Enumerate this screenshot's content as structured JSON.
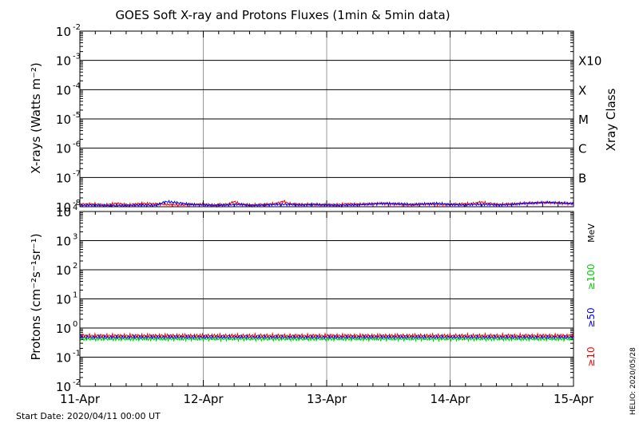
{
  "title": "GOES Soft X-ray and Protons Fluxes   (1min & 5min data)",
  "start_date": "Start Date: 2020/04/11 00:00 UT",
  "credit": "HELIO: 2020/05/28",
  "colors": {
    "xray_long": "#ff0000",
    "xray_short": "#0000ff",
    "p10": "#ff0000",
    "p50": "#0000ff",
    "p100": "#00cc00",
    "grid": "#000000",
    "day_grid": "#999999"
  },
  "chart_data": [
    {
      "type": "line",
      "panel": "xray",
      "ylabel": "X-rays (Watts m⁻²)",
      "y_scale": "log",
      "ylim": [
        1e-08,
        0.01
      ],
      "y_ticks": [
        {
          "base": "10",
          "exp": "-8",
          "value": 1e-08
        },
        {
          "base": "10",
          "exp": "-7",
          "value": 1e-07
        },
        {
          "base": "10",
          "exp": "-6",
          "value": 1e-06
        },
        {
          "base": "10",
          "exp": "-5",
          "value": 1e-05
        },
        {
          "base": "10",
          "exp": "-4",
          "value": 0.0001
        },
        {
          "base": "10",
          "exp": "-3",
          "value": 0.001
        },
        {
          "base": "10",
          "exp": "-2",
          "value": 0.01
        }
      ],
      "right_label": "Xray Class",
      "class_labels": [
        {
          "label": "B",
          "value": 1e-07
        },
        {
          "label": "C",
          "value": 1e-06
        },
        {
          "label": "M",
          "value": 1e-05
        },
        {
          "label": "X",
          "value": 0.0001
        },
        {
          "label": "X10",
          "value": 0.001
        }
      ],
      "xlim": [
        0,
        4
      ],
      "x_tick_labels": [
        "11-Apr",
        "12-Apr",
        "13-Apr",
        "14-Apr",
        "15-Apr"
      ],
      "series": [
        {
          "key": "long",
          "color": "#ff0000",
          "x": [
            0,
            0.1,
            0.2,
            0.3,
            0.4,
            0.5,
            0.6,
            0.7,
            0.8,
            0.9,
            1.0,
            1.1,
            1.2,
            1.25,
            1.3,
            1.4,
            1.5,
            1.6,
            1.65,
            1.7,
            1.8,
            1.9,
            2.0,
            2.1,
            2.2,
            2.3,
            2.4,
            2.5,
            2.6,
            2.7,
            2.8,
            2.9,
            3.0,
            3.1,
            3.2,
            3.25,
            3.3,
            3.4,
            3.5,
            3.6,
            3.7,
            3.8,
            3.9,
            4.0
          ],
          "values": [
            1.2e-08,
            1.25e-08,
            1.15e-08,
            1.3e-08,
            1.15e-08,
            1.3e-08,
            1.25e-08,
            1.2e-08,
            1.15e-08,
            1.2e-08,
            1.2e-08,
            1.15e-08,
            1.2e-08,
            1.5e-08,
            1.2e-08,
            1.15e-08,
            1.2e-08,
            1.3e-08,
            1.55e-08,
            1.25e-08,
            1.2e-08,
            1.2e-08,
            1.15e-08,
            1.2e-08,
            1.25e-08,
            1.2e-08,
            1.3e-08,
            1.25e-08,
            1.2e-08,
            1.15e-08,
            1.25e-08,
            1.2e-08,
            1.2e-08,
            1.25e-08,
            1.3e-08,
            1.45e-08,
            1.3e-08,
            1.2e-08,
            1.25e-08,
            1.3e-08,
            1.35e-08,
            1.4e-08,
            1.3e-08,
            1.25e-08
          ]
        },
        {
          "key": "short",
          "color": "#0000ff",
          "x": [
            0,
            0.1,
            0.2,
            0.3,
            0.4,
            0.5,
            0.6,
            0.7,
            0.8,
            0.9,
            1.0,
            1.1,
            1.2,
            1.3,
            1.4,
            1.5,
            1.6,
            1.7,
            1.8,
            1.9,
            2.0,
            2.1,
            2.2,
            2.3,
            2.4,
            2.5,
            2.6,
            2.7,
            2.8,
            2.9,
            3.0,
            3.1,
            3.2,
            3.3,
            3.4,
            3.5,
            3.6,
            3.7,
            3.8,
            3.9,
            4.0
          ],
          "values": [
            1.1e-08,
            1.15e-08,
            1.1e-08,
            1.1e-08,
            1.1e-08,
            1.15e-08,
            1.1e-08,
            1.5e-08,
            1.35e-08,
            1.2e-08,
            1.15e-08,
            1.1e-08,
            1.15e-08,
            1.2e-08,
            1.1e-08,
            1.15e-08,
            1.2e-08,
            1.2e-08,
            1.15e-08,
            1.2e-08,
            1.15e-08,
            1.1e-08,
            1.15e-08,
            1.2e-08,
            1.25e-08,
            1.3e-08,
            1.25e-08,
            1.2e-08,
            1.25e-08,
            1.3e-08,
            1.2e-08,
            1.15e-08,
            1.2e-08,
            1.2e-08,
            1.15e-08,
            1.2e-08,
            1.3e-08,
            1.35e-08,
            1.4e-08,
            1.35e-08,
            1.3e-08
          ]
        }
      ]
    },
    {
      "type": "line",
      "panel": "protons",
      "ylabel": "Protons (cm⁻²s⁻¹sr⁻¹)",
      "y_scale": "log",
      "ylim": [
        0.01,
        10000
      ],
      "y_ticks": [
        {
          "base": "10",
          "exp": "-2",
          "value": 0.01
        },
        {
          "base": "10",
          "exp": "-1",
          "value": 0.1
        },
        {
          "base": "10",
          "exp": "0",
          "value": 1
        },
        {
          "base": "10",
          "exp": "1",
          "value": 10
        },
        {
          "base": "10",
          "exp": "2",
          "value": 100
        },
        {
          "base": "10",
          "exp": "3",
          "value": 1000
        },
        {
          "base": "10",
          "exp": "4",
          "value": 10000
        }
      ],
      "threshold": 10,
      "unit_label": "MeV",
      "energy_labels": [
        {
          "label": "≥100",
          "color": "#00cc00"
        },
        {
          "label": "≥50",
          "color": "#0000ff"
        },
        {
          "label": "≥10",
          "color": "#ff0000"
        }
      ],
      "xlim": [
        0,
        4
      ],
      "x_tick_labels": [
        "11-Apr",
        "12-Apr",
        "13-Apr",
        "14-Apr",
        "15-Apr"
      ],
      "series": [
        {
          "key": "p10",
          "color": "#ff0000",
          "x": [
            0,
            1,
            2,
            3,
            4
          ],
          "values": [
            0.55,
            0.55,
            0.55,
            0.55,
            0.55
          ]
        },
        {
          "key": "p50",
          "color": "#0000ff",
          "x": [
            0,
            1,
            2,
            3,
            4
          ],
          "values": [
            0.48,
            0.48,
            0.48,
            0.48,
            0.48
          ]
        },
        {
          "key": "p100",
          "color": "#00cc00",
          "x": [
            0,
            1,
            2,
            3,
            4
          ],
          "values": [
            0.42,
            0.42,
            0.42,
            0.42,
            0.42
          ]
        }
      ]
    }
  ]
}
